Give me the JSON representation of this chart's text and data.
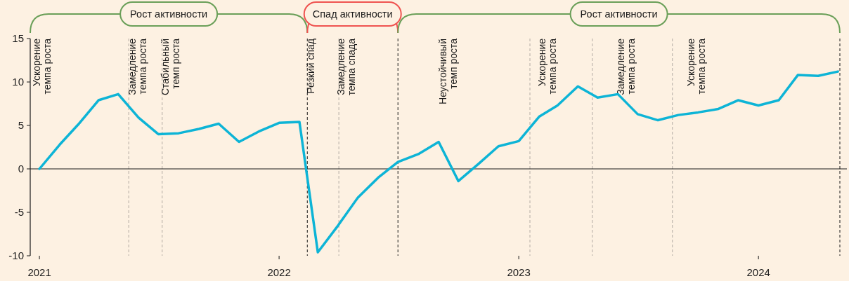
{
  "chart_data": {
    "type": "line",
    "x": [
      "2021-01-15",
      "2021-02-15",
      "2021-03-15",
      "2021-04-15",
      "2021-05-15",
      "2021-06-15",
      "2021-07-15",
      "2021-08-15",
      "2021-09-15",
      "2021-10-15",
      "2021-11-15",
      "2021-12-15",
      "2022-01-15",
      "2022-02-15",
      "2022-03-15",
      "2022-04-15",
      "2022-05-15",
      "2022-06-15",
      "2022-07-15",
      "2022-08-15",
      "2022-09-15",
      "2022-10-15",
      "2022-11-15",
      "2022-12-15",
      "2023-01-15",
      "2023-02-15",
      "2023-03-15",
      "2023-04-15",
      "2023-05-15",
      "2023-06-15",
      "2023-07-15",
      "2023-08-15",
      "2023-09-15",
      "2023-10-15",
      "2023-11-15",
      "2023-12-15",
      "2024-01-15",
      "2024-02-15",
      "2024-03-15",
      "2024-04-15",
      "2024-05-15"
    ],
    "series": [
      {
        "color": "#0db4d6",
        "values": [
          0,
          2.8,
          5.1,
          7.9,
          8.6,
          5.9,
          4.0,
          4.1,
          4.6,
          5.2,
          3.1,
          4.3,
          5.3,
          5.4,
          -9.6,
          -6.5,
          -3.3,
          -1.0,
          0.8,
          1.7,
          3.1,
          -1.4,
          0.6,
          2.6,
          3.2,
          6.0,
          7.3,
          9.5,
          8.2,
          8.6,
          6.3,
          5.6,
          6.2,
          6.5,
          6.9,
          7.9,
          7.3,
          7.9,
          10.8,
          10.7,
          11.2
        ]
      }
    ],
    "xlim": [
      "2021-01-01",
      "2024-05-18"
    ],
    "xticks": [
      {
        "value": "2021-01-15",
        "label": "2021"
      },
      {
        "value": "2022-01-15",
        "label": "2022"
      },
      {
        "value": "2023-01-15",
        "label": "2023"
      },
      {
        "value": "2024-01-15",
        "label": "2024"
      }
    ],
    "ylim": [
      -10,
      15
    ],
    "yticks": [
      -10,
      -5,
      0,
      5,
      10,
      15
    ],
    "marker": "none",
    "line_style": "solid",
    "ref_lines": [
      {
        "axis": "x",
        "value": "2021-05-31",
        "color": "#b3aca4",
        "line_style": "dashed"
      },
      {
        "axis": "x",
        "value": "2021-07-21",
        "color": "#b3aca4",
        "line_style": "dashed"
      },
      {
        "axis": "x",
        "value": "2022-02-27",
        "color": "#1a1a1a",
        "line_style": "dashed"
      },
      {
        "axis": "x",
        "value": "2022-04-16",
        "color": "#b3aca4",
        "line_style": "dashed"
      },
      {
        "axis": "x",
        "value": "2022-07-15",
        "color": "#1a1a1a",
        "line_style": "dashed"
      },
      {
        "axis": "x",
        "value": "2023-02-01",
        "color": "#b3aca4",
        "line_style": "dashed"
      },
      {
        "axis": "x",
        "value": "2023-05-07",
        "color": "#b3aca4",
        "line_style": "dashed"
      },
      {
        "axis": "x",
        "value": "2023-09-06",
        "color": "#b3aca4",
        "line_style": "dashed"
      },
      {
        "axis": "x",
        "value": "2024-05-18",
        "color": "#1a1a1a",
        "line_style": "dashed"
      },
      {
        "axis": "y",
        "value": 0,
        "color": "#1a1a1a",
        "line_style": "solid"
      }
    ],
    "annotations": [
      "Ускорение\nтемпа роста",
      "Замедление\nтемпа роста",
      "Стабильный\nтемп роста",
      "Резкий спад",
      "Замедление\nтемпа спада",
      "Неустойчивый\nтемп роста",
      "Ускорение\nтемпа роста",
      "Замедление\nтемпа роста",
      "Ускорение\nтемпа роста",
      "Рост активности",
      "Спад активности",
      "Рост активности"
    ]
  }
}
